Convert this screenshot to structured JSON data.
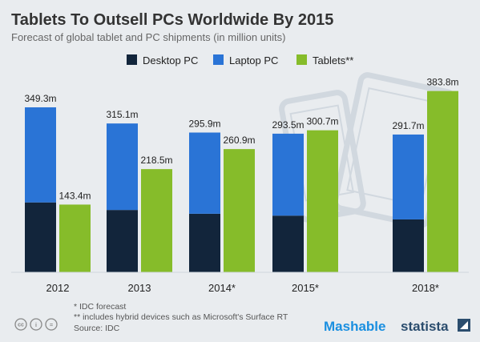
{
  "header": {
    "title": "Tablets To Outsell PCs Worldwide By 2015",
    "subtitle": "Forecast of global tablet and PC shipments (in million units)"
  },
  "chart_data": {
    "type": "bar",
    "stacked_series": [
      "Desktop PC",
      "Laptop PC"
    ],
    "categories": [
      "2012",
      "2013",
      "2014*",
      "2015*",
      "2018*"
    ],
    "series": [
      {
        "name": "Desktop PC",
        "color": "#12253b",
        "values": [
          148,
          132,
          124,
          120,
          112
        ]
      },
      {
        "name": "Laptop PC",
        "color": "#2a74d6",
        "values": [
          201.3,
          183.1,
          171.9,
          173.5,
          179.7
        ]
      },
      {
        "name": "Tablets**",
        "color": "#86bc2a",
        "values": [
          143.4,
          218.5,
          260.9,
          300.7,
          383.8
        ]
      }
    ],
    "pc_total_labels": [
      "349.3m",
      "315.1m",
      "295.9m",
      "293.5m",
      "291.7m"
    ],
    "tablet_labels": [
      "143.4m",
      "218.5m",
      "260.9m",
      "300.7m",
      "383.8m"
    ],
    "ylim": [
      0,
      400
    ],
    "grid": false,
    "legend": "top-center"
  },
  "footnotes": {
    "line1": "* IDC forecast",
    "line2": "** includes hybrid devices such as Microsoft's Surface RT",
    "line3": "Source: IDC"
  },
  "branding": {
    "mashable": "Mashable",
    "statista": "statista"
  },
  "license_icons": {
    "cc": "cc",
    "by": "i",
    "nd": "="
  }
}
